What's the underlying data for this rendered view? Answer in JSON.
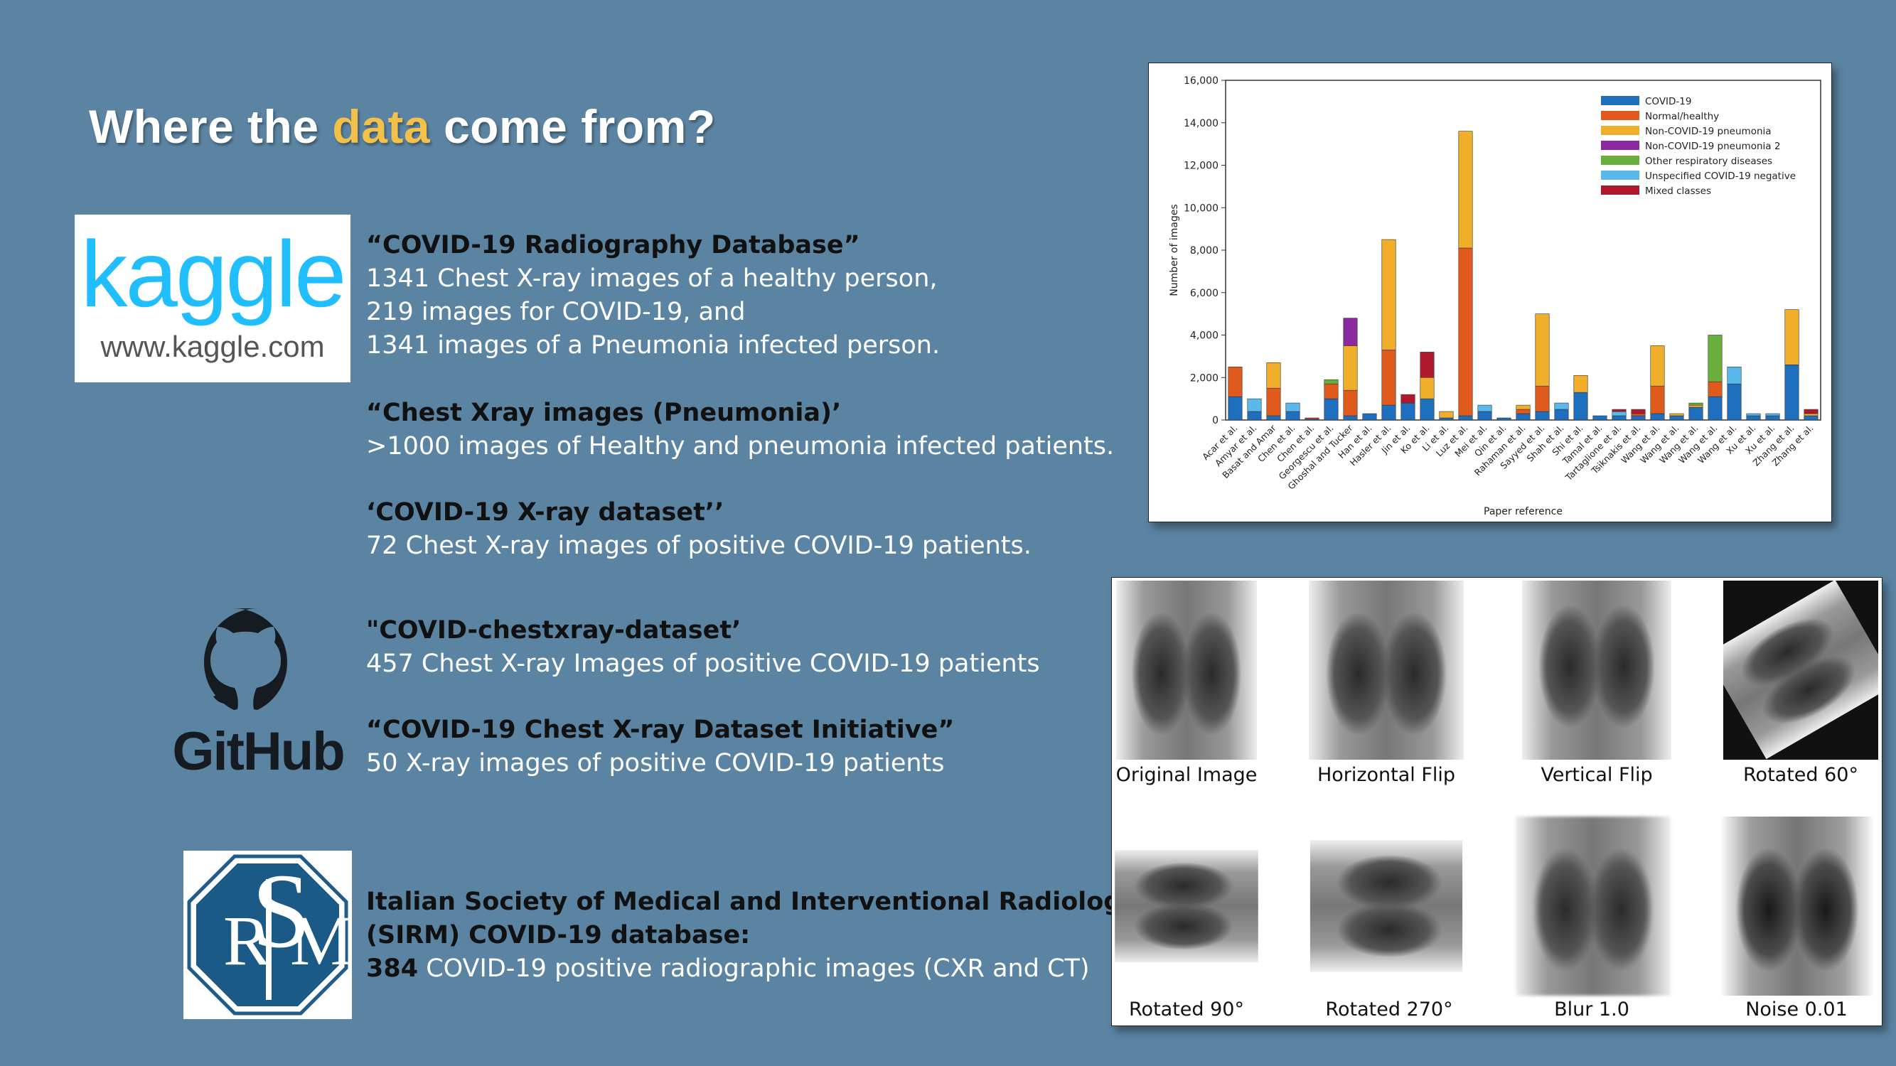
{
  "title": {
    "pre": "Where the ",
    "accent": "data",
    "post": " come from?"
  },
  "logos": {
    "kaggle_word": "kaggle",
    "kaggle_url": "www.kaggle.com",
    "github_word": "GitHub"
  },
  "sources": [
    {
      "title": "“COVID-19 Radiography Database”",
      "lines": [
        "1341 Chest X-ray images of a healthy person,",
        "219 images for COVID-19, and",
        "1341 images of a Pneumonia infected person."
      ]
    },
    {
      "title": "“Chest Xray images (Pneumonia)’",
      "lines": [
        ">1000 images of Healthy and pneumonia infected patients."
      ]
    },
    {
      "title": "‘COVID-19 X-ray dataset’’",
      "lines": [
        "72 Chest X-ray images of positive COVID-19 patients."
      ]
    },
    {
      "title": "\"COVID-chestxray-dataset’",
      "lines": [
        "457 Chest X-ray Images of positive COVID-19 patients"
      ]
    },
    {
      "title": "“COVID-19 Chest X-ray Dataset Initiative”",
      "lines": [
        "50 X-ray images of positive COVID-19 patients"
      ]
    },
    {
      "title": "Italian Society of Medical and Interventional Radiology",
      "title2": "(SIRM) COVID-19 database:",
      "bold_num": "384",
      "rest": " COVID-19 positive radiographic images (CXR and CT)"
    }
  ],
  "augment_labels": [
    "Original Image",
    "Horizontal Flip",
    "Vertical Flip",
    "Rotated 60°",
    "Rotated 90°",
    "Rotated 270°",
    "Blur 1.0",
    "Noise 0.01"
  ],
  "chart_data": {
    "type": "bar",
    "stacked": true,
    "ylabel": "Number of images",
    "xlabel": "Paper reference",
    "ylim": [
      0,
      16000
    ],
    "yticks": [
      "0",
      "2,000",
      "4,000",
      "6,000",
      "8,000",
      "10,000",
      "12,000",
      "14,000",
      "16,000"
    ],
    "legend_position": "top-right",
    "categories": [
      "Acar et al.",
      "Amyar et al.",
      "Basat and Amar",
      "Chen et al.",
      "Chen et al.",
      "Georgescu et al.",
      "Ghoshal and Tucker",
      "Han et al.",
      "Hasler et al.",
      "Jin et al.",
      "Ko et al.",
      "Li et al.",
      "Luz et al.",
      "Mei et al.",
      "Qin et al.",
      "Rahaman et al.",
      "Sayyed et al.",
      "Shah et al.",
      "Shi et al.",
      "Tamal et al.",
      "Tartaglione et al.",
      "Tsiknakis et al.",
      "Wang et al.",
      "Wang et al.",
      "Wang et al.",
      "Wang et al.",
      "Wang et al.",
      "Xu et al.",
      "Xu et al.",
      "Zhang et al.",
      "Zhang et al."
    ],
    "series": [
      {
        "name": "COVID-19",
        "color": "#1f6fbf",
        "values": [
          1100,
          400,
          200,
          400,
          50,
          1000,
          200,
          300,
          700,
          800,
          1000,
          100,
          200,
          400,
          100,
          300,
          400,
          500,
          1300,
          200,
          200,
          200,
          300,
          200,
          600,
          1100,
          1700,
          200,
          200,
          2600,
          200
        ]
      },
      {
        "name": "Normal/healthy",
        "color": "#e05a1e",
        "values": [
          1400,
          0,
          1300,
          0,
          50,
          700,
          1200,
          0,
          2600,
          0,
          0,
          0,
          7900,
          0,
          0,
          200,
          1200,
          0,
          0,
          0,
          0,
          100,
          1300,
          0,
          0,
          700,
          0,
          0,
          0,
          0,
          0
        ]
      },
      {
        "name": "Non-COVID-19 pneumonia",
        "color": "#f0ae2a",
        "values": [
          0,
          0,
          1200,
          0,
          0,
          0,
          2100,
          0,
          5200,
          0,
          1000,
          300,
          5500,
          0,
          0,
          200,
          3400,
          0,
          800,
          0,
          0,
          0,
          1900,
          100,
          100,
          0,
          0,
          0,
          0,
          2600,
          100
        ]
      },
      {
        "name": "Non-COVID-19 pneumonia 2",
        "color": "#8a2a9e",
        "values": [
          0,
          0,
          0,
          0,
          0,
          0,
          1300,
          0,
          0,
          0,
          0,
          0,
          0,
          0,
          0,
          0,
          0,
          0,
          0,
          0,
          0,
          0,
          0,
          0,
          0,
          0,
          0,
          0,
          0,
          0,
          0
        ]
      },
      {
        "name": "Other respiratory diseases",
        "color": "#6aae3c",
        "values": [
          0,
          0,
          0,
          0,
          0,
          200,
          0,
          0,
          0,
          0,
          0,
          0,
          0,
          0,
          0,
          0,
          0,
          0,
          0,
          0,
          0,
          0,
          0,
          0,
          100,
          2200,
          0,
          0,
          0,
          0,
          0
        ]
      },
      {
        "name": "Unspecified COVID-19 negative",
        "color": "#5ab9ea",
        "values": [
          0,
          600,
          0,
          400,
          0,
          0,
          0,
          0,
          0,
          0,
          0,
          0,
          0,
          300,
          0,
          0,
          0,
          300,
          0,
          0,
          200,
          0,
          0,
          0,
          0,
          0,
          800,
          100,
          100,
          0,
          0
        ]
      },
      {
        "name": "Mixed classes",
        "color": "#b0182e",
        "values": [
          0,
          0,
          0,
          0,
          0,
          0,
          0,
          0,
          0,
          400,
          1200,
          0,
          0,
          0,
          0,
          0,
          0,
          0,
          0,
          0,
          100,
          200,
          0,
          0,
          0,
          0,
          0,
          0,
          0,
          0,
          200
        ]
      }
    ]
  }
}
